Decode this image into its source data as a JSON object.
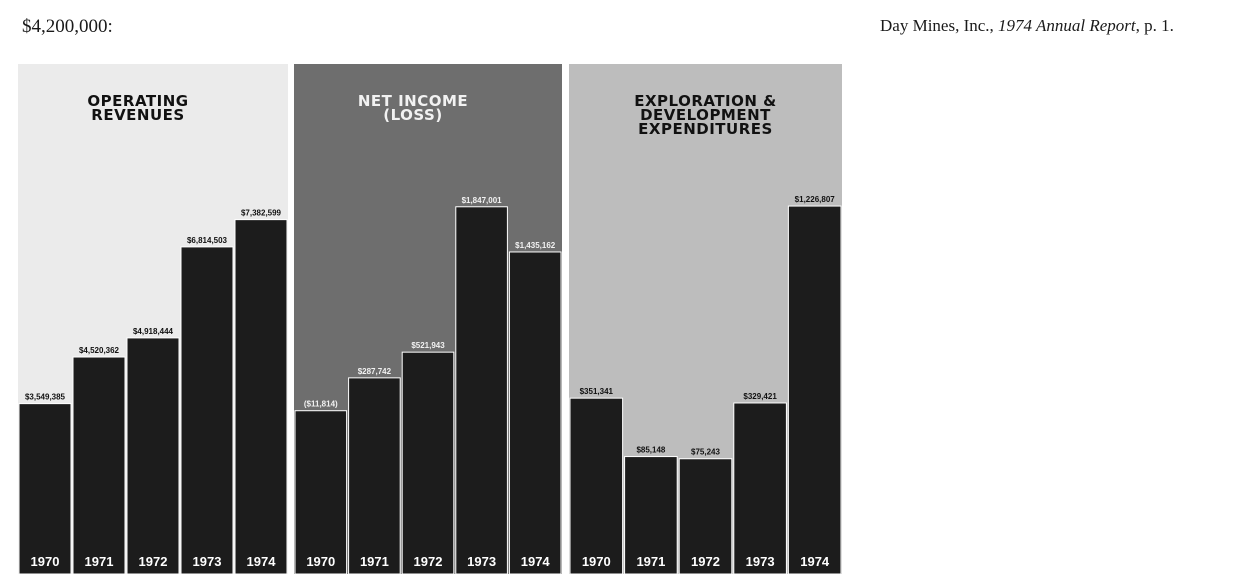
{
  "header": {
    "left_text": "$4,200,000:",
    "citation_company": "Day Mines, Inc., ",
    "citation_title": "1974 Annual Report",
    "citation_page": ", p. 1."
  },
  "colors": {
    "light_panel_bg": "#ebebeb",
    "dark_panel_bg": "#6e6e6e",
    "mid_panel_bg": "#bdbdbd",
    "bar_fill": "#1c1c1c",
    "bar_text": "#ffffff",
    "title_text_light": "#111111",
    "title_text_dark": "#f2f2f2"
  },
  "chart_data": [
    {
      "type": "bar",
      "title_lines": [
        "OPERATING",
        "REVENUES"
      ],
      "categories": [
        "1970",
        "1971",
        "1972",
        "1973",
        "1974"
      ],
      "values": [
        3549385,
        4520362,
        4918444,
        6814503,
        7382599
      ],
      "value_labels": [
        "$3,549,385",
        "$4,520,362",
        "$4,918,444",
        "$6,814,503",
        "$7,382,599"
      ],
      "ylim": [
        0,
        8000000
      ]
    },
    {
      "type": "bar",
      "title_lines": [
        "NET INCOME",
        "(LOSS)"
      ],
      "categories": [
        "1970",
        "1971",
        "1972",
        "1973",
        "1974"
      ],
      "values": [
        -11814,
        287742,
        521943,
        1847001,
        1435162
      ],
      "value_labels": [
        "($11,814)",
        "$287,742",
        "$521,943",
        "$1,847,001",
        "$1,435,162"
      ],
      "ylim": [
        -1500000,
        2000000
      ]
    },
    {
      "type": "bar",
      "title_lines": [
        "EXPLORATION &",
        "DEVELOPMENT",
        "EXPENDITURES"
      ],
      "categories": [
        "1970",
        "1971",
        "1972",
        "1973",
        "1974"
      ],
      "values": [
        351341,
        85148,
        75243,
        329421,
        1226807
      ],
      "value_labels": [
        "$351,341",
        "$85,148",
        "$75,243",
        "$329,421",
        "$1,226,807"
      ],
      "ylim": [
        -450000,
        1300000
      ]
    }
  ]
}
